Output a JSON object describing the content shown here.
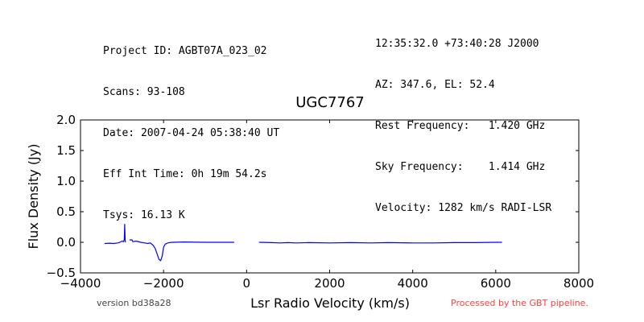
{
  "header": {
    "left_lines": [
      "Project ID: AGBT07A_023_02",
      "Scans: 93-108",
      "Date: 2007-04-24 05:38:40 UT",
      "Eff Int Time: 0h 19m 54.2s",
      "Tsys: 16.13 K"
    ],
    "right_lines": [
      "12:35:32.0 +73:40:28 J2000",
      "AZ: 347.6, EL: 52.4",
      "Rest Frequency:   1.420 GHz",
      "Sky Frequency:    1.414 GHz",
      "Velocity: 1282 km/s RADI-LSR"
    ]
  },
  "footer": {
    "version": "version bd38a28",
    "processed": "Processed by the GBT pipeline."
  },
  "colors": {
    "line": "#0000ff",
    "processed_text": "#ff4040",
    "version_text": "#444444"
  },
  "chart_data": {
    "type": "line",
    "title": "UGC7767",
    "xlabel": "Lsr Radio Velocity (km/s)",
    "ylabel": "Flux Density (Jy)",
    "xlim": [
      -4000,
      8000
    ],
    "ylim": [
      -0.5,
      2.0
    ],
    "xticks": [
      -4000,
      -2000,
      0,
      2000,
      4000,
      6000,
      8000
    ],
    "xtick_labels": [
      "−4000",
      "−2000",
      "0",
      "2000",
      "4000",
      "6000",
      "8000"
    ],
    "yticks": [
      -0.5,
      0.0,
      0.5,
      1.0,
      1.5,
      2.0
    ],
    "ytick_labels": [
      "−0.5",
      "0.0",
      "0.5",
      "1.0",
      "1.5",
      "2.0"
    ],
    "grid": false,
    "series": [
      {
        "segments": [
          [
            [
              -3420,
              -0.02
            ],
            [
              -3300,
              -0.015
            ],
            [
              -3200,
              -0.02
            ],
            [
              -3100,
              -0.01
            ],
            [
              -3050,
              0.0
            ],
            [
              -3000,
              0.02
            ],
            [
              -2960,
              0.01
            ],
            [
              -2945,
              0.05
            ],
            [
              -2935,
              0.3
            ],
            [
              -2925,
              0.02
            ],
            [
              -2910,
              0.0
            ]
          ],
          [
            [
              -2820,
              0.04
            ],
            [
              -2760,
              0.04
            ],
            [
              -2740,
              0.01
            ],
            [
              -2650,
              0.02
            ],
            [
              -2550,
              0.0
            ],
            [
              -2450,
              -0.01
            ],
            [
              -2380,
              -0.02
            ],
            [
              -2320,
              -0.01
            ],
            [
              -2250,
              -0.05
            ],
            [
              -2200,
              -0.1
            ],
            [
              -2150,
              -0.2
            ],
            [
              -2110,
              -0.28
            ],
            [
              -2070,
              -0.3
            ],
            [
              -2030,
              -0.22
            ],
            [
              -2000,
              -0.08
            ],
            [
              -1960,
              -0.03
            ],
            [
              -1900,
              -0.01
            ],
            [
              -1800,
              0.0
            ],
            [
              -1500,
              0.005
            ],
            [
              -1000,
              0.0
            ],
            [
              -600,
              0.0
            ],
            [
              -300,
              0.0
            ]
          ],
          [
            [
              300,
              0.0
            ],
            [
              600,
              -0.005
            ],
            [
              800,
              -0.01
            ],
            [
              1000,
              -0.005
            ],
            [
              1200,
              -0.01
            ],
            [
              1500,
              -0.005
            ],
            [
              2000,
              -0.01
            ],
            [
              2500,
              -0.005
            ],
            [
              3000,
              -0.01
            ],
            [
              3400,
              -0.005
            ],
            [
              4000,
              -0.01
            ],
            [
              4500,
              -0.01
            ],
            [
              5000,
              -0.005
            ],
            [
              5500,
              -0.005
            ],
            [
              6000,
              0.0
            ],
            [
              6150,
              0.0
            ]
          ]
        ]
      }
    ]
  }
}
